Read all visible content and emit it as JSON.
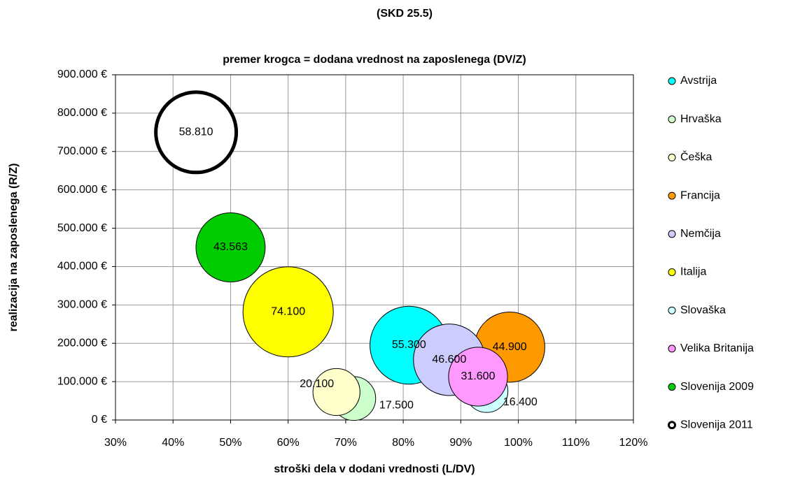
{
  "chart_data": {
    "type": "bubble",
    "title": "(SKD 25.5)",
    "subtitle": "premer krogca = dodana vrednost na zaposlenega (DV/Z)",
    "x_label": "stroški dela v dodani vrednosti (L/DV)",
    "y_label": "realizacija na zaposlenega (R/Z)",
    "xlim": [
      30,
      120
    ],
    "xticks": [
      {
        "value": 30,
        "label": "30%"
      },
      {
        "value": 40,
        "label": "40%"
      },
      {
        "value": 50,
        "label": "50%"
      },
      {
        "value": 60,
        "label": "60%"
      },
      {
        "value": 70,
        "label": "70%"
      },
      {
        "value": 80,
        "label": "80%"
      },
      {
        "value": 90,
        "label": "90%"
      },
      {
        "value": 100,
        "label": "100%"
      },
      {
        "value": 110,
        "label": "110%"
      },
      {
        "value": 120,
        "label": "120%"
      }
    ],
    "ylim": [
      0,
      900000
    ],
    "yticks": [
      {
        "value": 0,
        "label": "0 €"
      },
      {
        "value": 100000,
        "label": "100.000 €"
      },
      {
        "value": 200000,
        "label": "200.000 €"
      },
      {
        "value": 300000,
        "label": "300.000 €"
      },
      {
        "value": 400000,
        "label": "400.000 €"
      },
      {
        "value": 500000,
        "label": "500.000 €"
      },
      {
        "value": 600000,
        "label": "600.000 €"
      },
      {
        "value": 700000,
        "label": "700.000 €"
      },
      {
        "value": 800000,
        "label": "800.000 €"
      },
      {
        "value": 900000,
        "label": "900.000 €"
      }
    ],
    "grid": true,
    "legend": "right",
    "series": [
      {
        "name": "Avstrija",
        "color": "#00ffff",
        "x": [
          81
        ],
        "values": [
          195000
        ],
        "sizes": [
          55300
        ],
        "size_labels": [
          "55.300"
        ]
      },
      {
        "name": "Hrvaška",
        "color": "#ccffcc",
        "x": [
          71.4
        ],
        "values": [
          56000
        ],
        "sizes": [
          17500
        ],
        "size_labels": [
          "17.500"
        ]
      },
      {
        "name": "Češka",
        "color": "#ffffcc",
        "x": [
          68.4
        ],
        "values": [
          73000
        ],
        "sizes": [
          20100
        ],
        "size_labels": [
          "20.100"
        ]
      },
      {
        "name": "Francija",
        "color": "#ff9900",
        "x": [
          98.5
        ],
        "values": [
          190000
        ],
        "sizes": [
          44900
        ],
        "size_labels": [
          "44.900"
        ]
      },
      {
        "name": "Nemčija",
        "color": "#ccccff",
        "x": [
          88
        ],
        "values": [
          157000
        ],
        "sizes": [
          46600
        ],
        "size_labels": [
          "46.600"
        ]
      },
      {
        "name": "Italija",
        "color": "#ffff00",
        "x": [
          60
        ],
        "values": [
          282000
        ],
        "sizes": [
          74100
        ],
        "size_labels": [
          "74.100"
        ]
      },
      {
        "name": "Slovaška",
        "color": "#ccffff",
        "x": [
          94.5
        ],
        "values": [
          75000
        ],
        "sizes": [
          16400
        ],
        "size_labels": [
          "16.400"
        ]
      },
      {
        "name": "Velika Britanija",
        "color": "#ff99ff",
        "x": [
          93
        ],
        "values": [
          113000
        ],
        "sizes": [
          31600
        ],
        "size_labels": [
          "31.600"
        ]
      },
      {
        "name": "Slovenija 2009",
        "color": "#00cc00",
        "x": [
          50
        ],
        "values": [
          450000
        ],
        "sizes": [
          43563
        ],
        "size_labels": [
          "43.563"
        ]
      },
      {
        "name": "Slovenija 2011",
        "color": "#ffffff",
        "outline": "bold",
        "x": [
          44
        ],
        "values": [
          750000
        ],
        "sizes": [
          58810
        ],
        "size_labels": [
          "58.810"
        ]
      }
    ]
  }
}
